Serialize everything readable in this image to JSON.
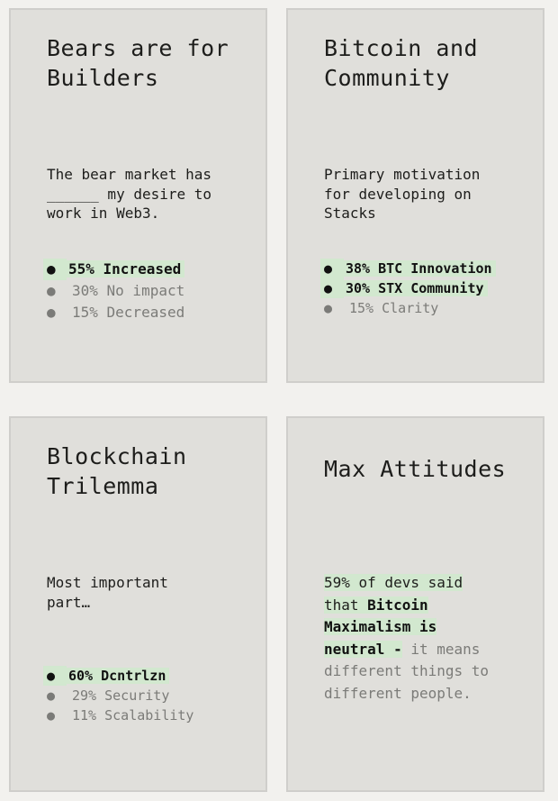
{
  "cards": [
    {
      "title": "Bears are for Builders",
      "question": "The bear market has ______ my desire to work in Web3.",
      "items": [
        {
          "text": "55% Increased",
          "highlight": true
        },
        {
          "text": "30% No impact",
          "highlight": false
        },
        {
          "text": "15% Decreased",
          "highlight": false
        }
      ]
    },
    {
      "title": "Bitcoin and Community",
      "question": "Primary motivation for developing on Stacks",
      "items": [
        {
          "text": "38% BTC Innovation",
          "highlight": true
        },
        {
          "text": "30% STX Community",
          "highlight": true
        },
        {
          "text": "15% Clarity",
          "highlight": false
        }
      ]
    },
    {
      "title": "Blockchain Trilemma",
      "question": "Most important part…",
      "items": [
        {
          "text": "60% Dcntrlzn",
          "highlight": true
        },
        {
          "text": "29% Security",
          "highlight": false
        },
        {
          "text": "11% Scalability",
          "highlight": false
        }
      ]
    },
    {
      "title": "Max Attitudes",
      "statement": {
        "lead": "59% of devs said that ",
        "bold": "Bitcoin Maximalism is neutral -",
        "rest": " it means different things to different people."
      }
    }
  ],
  "colors": {
    "page_bg": "#f2f1ee",
    "card_bg": "#e0dfdb",
    "highlight": "#d2e8cf",
    "muted_text": "#7b7b78"
  }
}
